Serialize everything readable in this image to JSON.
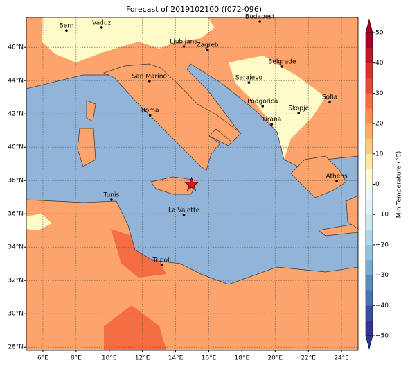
{
  "title": "Forecast of 2019102100 (f072-096)",
  "map": {
    "xlim": [
      5,
      25
    ],
    "ylim": [
      27.8,
      47.8
    ],
    "grid": true,
    "xticks": [
      {
        "value": 6,
        "label": "6°E"
      },
      {
        "value": 8,
        "label": "8°E"
      },
      {
        "value": 10,
        "label": "10°E"
      },
      {
        "value": 12,
        "label": "12°E"
      },
      {
        "value": 14,
        "label": "14°E"
      },
      {
        "value": 16,
        "label": "16°E"
      },
      {
        "value": 18,
        "label": "18°E"
      },
      {
        "value": 20,
        "label": "20°E"
      },
      {
        "value": 22,
        "label": "22°E"
      },
      {
        "value": 24,
        "label": "24°E"
      }
    ],
    "yticks": [
      {
        "value": 28,
        "label": "28°N"
      },
      {
        "value": 30,
        "label": "30°N"
      },
      {
        "value": 32,
        "label": "32°N"
      },
      {
        "value": 34,
        "label": "34°N"
      },
      {
        "value": 36,
        "label": "36°N"
      },
      {
        "value": 38,
        "label": "38°N"
      },
      {
        "value": 40,
        "label": "40°N"
      },
      {
        "value": 42,
        "label": "42°N"
      },
      {
        "value": 44,
        "label": "44°N"
      },
      {
        "value": 46,
        "label": "46°N"
      }
    ]
  },
  "cities": [
    {
      "name": "Bern",
      "lon": 7.42,
      "lat": 47.0
    },
    {
      "name": "Vaduz",
      "lon": 9.54,
      "lat": 47.18
    },
    {
      "name": "Budapest",
      "lon": 19.08,
      "lat": 47.55
    },
    {
      "name": "Ljubljana",
      "lon": 14.5,
      "lat": 46.05
    },
    {
      "name": "Zagreb",
      "lon": 15.92,
      "lat": 45.84
    },
    {
      "name": "San Marino",
      "lon": 12.42,
      "lat": 43.97
    },
    {
      "name": "Sarajevo",
      "lon": 18.42,
      "lat": 43.88
    },
    {
      "name": "Belgrade",
      "lon": 20.42,
      "lat": 44.84
    },
    {
      "name": "Roma",
      "lon": 12.46,
      "lat": 41.92
    },
    {
      "name": "Podgorica",
      "lon": 19.25,
      "lat": 42.47
    },
    {
      "name": "Skopje",
      "lon": 21.42,
      "lat": 42.05
    },
    {
      "name": "Sofia",
      "lon": 23.29,
      "lat": 42.72
    },
    {
      "name": "Tirana",
      "lon": 19.79,
      "lat": 41.38
    },
    {
      "name": "Athens",
      "lon": 23.71,
      "lat": 37.97
    },
    {
      "name": "Tunis",
      "lon": 10.13,
      "lat": 36.84
    },
    {
      "name": "La Valette",
      "lon": 14.5,
      "lat": 35.93
    },
    {
      "name": "Tripoli",
      "lon": 13.17,
      "lat": 32.93
    }
  ],
  "marker": {
    "lon": 14.96,
    "lat": 37.76,
    "color": "#e8141c"
  },
  "colorbar": {
    "label": "Min Temperature (°C)",
    "lim": [
      -50,
      50
    ],
    "ticks": [
      {
        "value": -50,
        "label": "−50"
      },
      {
        "value": -40,
        "label": "−40"
      },
      {
        "value": -30,
        "label": "−30"
      },
      {
        "value": -20,
        "label": "−20"
      },
      {
        "value": -10,
        "label": "−10"
      },
      0,
      10,
      20,
      30,
      40,
      50
    ],
    "colors": [
      "#313695",
      "#3a4ca0",
      "#4575b4",
      "#5a8cc1",
      "#74add1",
      "#8fc3dd",
      "#abd9e9",
      "#cbe8f0",
      "#e0f3f8",
      "#eff9f3",
      "#fffbd0",
      "#fee9a3",
      "#fdc982",
      "#fdae61",
      "#f88d52",
      "#f46d43",
      "#e34a33",
      "#d73027",
      "#bd1726",
      "#a50026"
    ]
  }
}
